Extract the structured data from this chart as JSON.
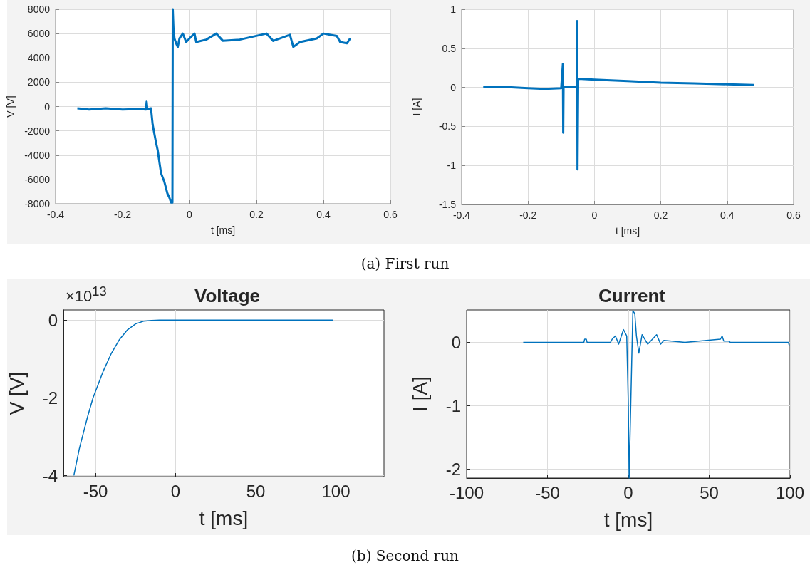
{
  "chart_data": [
    {
      "type": "line",
      "xlabel": "t [ms]",
      "ylabel": "V [V]",
      "color": "#0072bd",
      "grid": true,
      "annotations": [
        "(a) First run"
      ],
      "x": [
        -0.335,
        -0.3,
        -0.25,
        -0.2,
        -0.15,
        -0.13,
        -0.128,
        -0.126,
        -0.115,
        -0.11,
        -0.1,
        -0.095,
        -0.085,
        -0.075,
        -0.066,
        -0.06,
        -0.055,
        -0.051,
        -0.05,
        -0.048,
        -0.045,
        -0.04,
        -0.035,
        -0.03,
        -0.02,
        -0.01,
        0,
        0.015,
        0.02,
        0.05,
        0.08,
        0.1,
        0.15,
        0.23,
        0.25,
        0.3,
        0.31,
        0.33,
        0.38,
        0.4,
        0.44,
        0.45,
        0.47,
        0.48
      ],
      "values": [
        -150,
        -250,
        -150,
        -250,
        -200,
        -250,
        400,
        -200,
        -150,
        -1500,
        -2960,
        -3600,
        -5480,
        -6200,
        -7150,
        -7500,
        -7900,
        -7900,
        8000,
        6500,
        5600,
        5200,
        4900,
        5600,
        6000,
        5300,
        5600,
        6000,
        5300,
        5500,
        6000,
        5400,
        5500,
        6000,
        5400,
        5900,
        4900,
        5300,
        5600,
        6000,
        5800,
        5300,
        5200,
        5600
      ],
      "xlim": [
        -0.4,
        0.6
      ],
      "xticks": [
        -0.4,
        -0.2,
        0,
        0.2,
        0.4,
        0.6
      ],
      "ylim": [
        -8000,
        8000
      ],
      "yticks": [
        -8000,
        -6000,
        -4000,
        -2000,
        0,
        2000,
        4000,
        6000,
        8000
      ]
    },
    {
      "type": "line",
      "xlabel": "t [ms]",
      "ylabel": "I [A]",
      "color": "#0072bd",
      "grid": true,
      "x": [
        -0.335,
        -0.25,
        -0.2,
        -0.15,
        -0.1,
        -0.095,
        -0.094,
        -0.093,
        -0.053,
        -0.052,
        -0.051,
        -0.049,
        0,
        0.1,
        0.2,
        0.3,
        0.4,
        0.48
      ],
      "values": [
        0,
        0,
        -0.01,
        -0.02,
        -0.01,
        0.3,
        -0.58,
        0,
        0,
        0.85,
        -1.05,
        0.11,
        0.1,
        0.08,
        0.06,
        0.05,
        0.04,
        0.03
      ],
      "xlim": [
        -0.4,
        0.6
      ],
      "xticks": [
        -0.4,
        -0.2,
        0,
        0.2,
        0.4,
        0.6
      ],
      "ylim": [
        -1.5,
        1
      ],
      "yticks": [
        -1.5,
        -1,
        -0.5,
        0,
        0.5,
        1
      ]
    },
    {
      "type": "line",
      "title": "Voltage",
      "xlabel": "t [ms]",
      "ylabel": "V [V]",
      "color": "#0072bd",
      "grid": true,
      "annotations": [
        "×10$^{13}$",
        "(b) Second run"
      ],
      "x": [
        -63.5,
        -60,
        -55,
        -51.5,
        -45,
        -40,
        -35,
        -30,
        -25,
        -20,
        -15,
        -10,
        98
      ],
      "values": [
        -4.0,
        -3.3,
        -2.5,
        -2.0,
        -1.3,
        -0.85,
        -0.5,
        -0.25,
        -0.1,
        -0.03,
        -0.01,
        0,
        0
      ],
      "xlim": [
        -70,
        130
      ],
      "xticks": [
        -50,
        0,
        50,
        100
      ],
      "ylim": [
        -4.03,
        0.26
      ],
      "yticks": [
        -4,
        -2,
        0
      ]
    },
    {
      "type": "line",
      "title": "Current",
      "xlabel": "t [ms]",
      "ylabel": "I [A]",
      "color": "#0072bd",
      "grid": true,
      "x": [
        -65,
        -27.5,
        -27,
        -26,
        -25.5,
        -11,
        -10,
        -8,
        -6,
        -3,
        -1,
        0,
        0.5,
        2.8,
        4,
        5,
        6.5,
        8.5,
        12,
        17.5,
        20,
        22,
        35,
        57,
        58,
        59,
        62,
        63,
        99,
        99.5
      ],
      "values": [
        0,
        0,
        0.05,
        0.05,
        0,
        0,
        0.05,
        0.1,
        -0.03,
        0.2,
        0.1,
        -1,
        -2.14,
        0.5,
        0.45,
        0.1,
        -0.17,
        0.12,
        -0.03,
        0.12,
        -0.03,
        0.03,
        0,
        0.05,
        0.1,
        0.02,
        0.02,
        0,
        0,
        -0.05
      ],
      "xlim": [
        -100,
        100
      ],
      "xticks": [
        -100,
        -50,
        0,
        50,
        100
      ],
      "ylim": [
        -2.14,
        0.51
      ],
      "yticks": [
        -2,
        -1,
        0
      ]
    }
  ]
}
